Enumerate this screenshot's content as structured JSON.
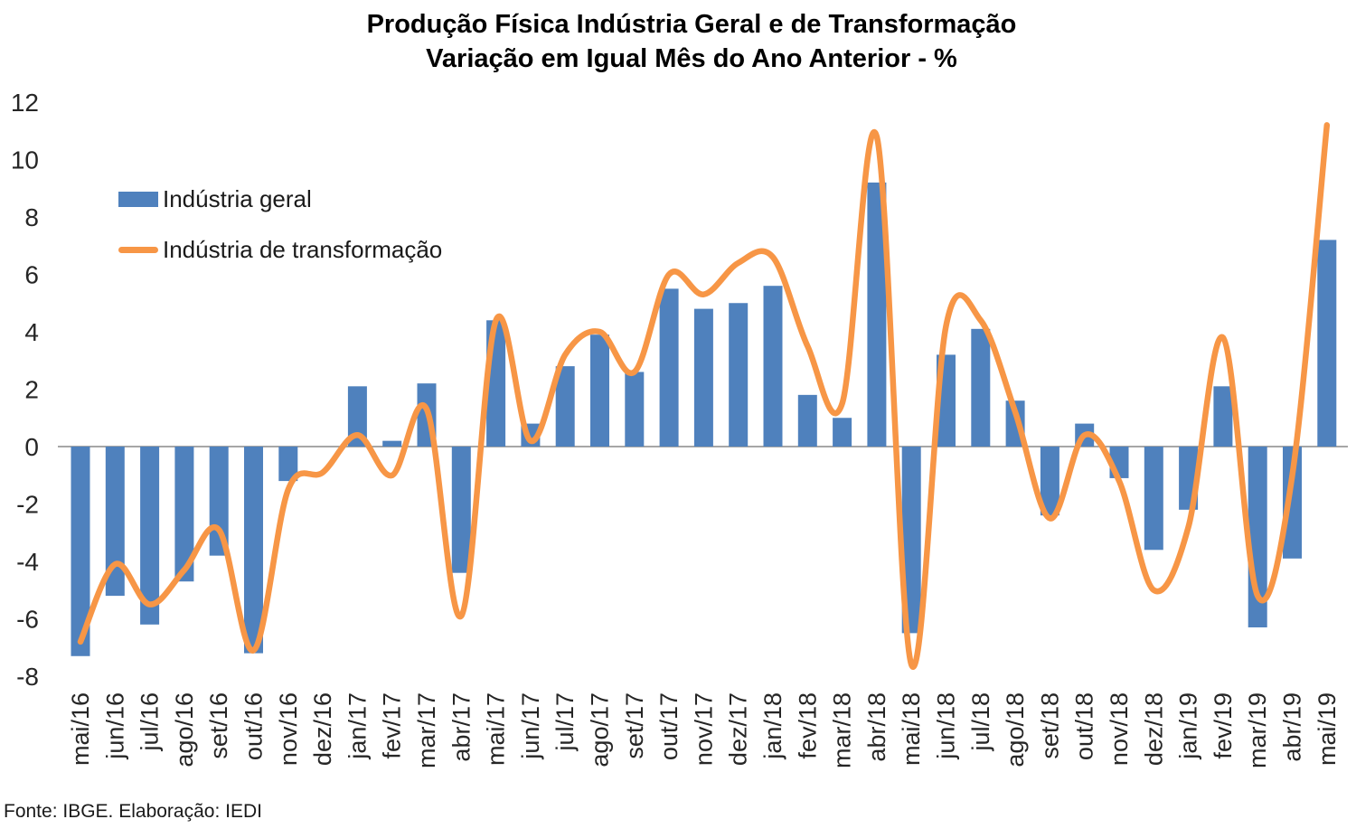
{
  "title": {
    "line1": "Produção Física Indústria Geral e de Transformação",
    "line2": "Variação em Igual Mês do Ano Anterior - %"
  },
  "legend": {
    "bar_label": "Indústria geral",
    "line_label": "Indústria de transformação"
  },
  "footer": "Fonte: IBGE. Elaboração: IEDI",
  "colors": {
    "bar": "#4F81BD",
    "line": "#F79646",
    "axis": "#A6A6A6",
    "text": "#262626"
  },
  "chart_data": {
    "type": "bar+line combo",
    "title": "Produção Física Indústria Geral e de Transformação — Variação em Igual Mês do Ano Anterior - %",
    "xlabel": "",
    "ylabel": "",
    "ylim": [
      -8,
      12
    ],
    "yticks": [
      12,
      10,
      8,
      6,
      4,
      2,
      0,
      -2,
      -4,
      -6,
      -8
    ],
    "grid": false,
    "legend_position": "inside-top-left",
    "categories": [
      "mai/16",
      "jun/16",
      "jul/16",
      "ago/16",
      "set/16",
      "out/16",
      "nov/16",
      "dez/16",
      "jan/17",
      "fev/17",
      "mar/17",
      "abr/17",
      "mai/17",
      "jun/17",
      "jul/17",
      "ago/17",
      "set/17",
      "out/17",
      "nov/17",
      "dez/17",
      "jan/18",
      "fev/18",
      "mar/18",
      "abr/18",
      "mai/18",
      "jun/18",
      "jul/18",
      "ago/18",
      "set/18",
      "out/18",
      "nov/18",
      "dez/18",
      "jan/19",
      "fev/19",
      "mar/19",
      "abr/19",
      "mai/19"
    ],
    "series": [
      {
        "name": "Indústria geral",
        "type": "bar",
        "values": [
          -7.3,
          -5.2,
          -6.2,
          -4.7,
          -3.8,
          -7.2,
          -1.2,
          0.0,
          2.1,
          0.2,
          2.2,
          -4.4,
          4.4,
          0.8,
          2.8,
          3.9,
          2.6,
          5.5,
          4.8,
          5.0,
          5.6,
          1.8,
          1.0,
          9.2,
          -6.5,
          3.2,
          4.1,
          1.6,
          -2.4,
          0.8,
          -1.1,
          -3.6,
          -2.2,
          2.1,
          -6.3,
          -3.9,
          7.2
        ]
      },
      {
        "name": "Indústria de transformação",
        "type": "line",
        "values": [
          -6.8,
          -4.1,
          -5.5,
          -4.3,
          -2.9,
          -7.1,
          -1.5,
          -0.9,
          0.4,
          -1.0,
          1.3,
          -5.9,
          4.4,
          0.2,
          3.2,
          4.0,
          2.6,
          6.0,
          5.3,
          6.4,
          6.6,
          3.5,
          1.5,
          10.8,
          -7.6,
          4.2,
          4.4,
          1.2,
          -2.5,
          0.4,
          -1.2,
          -5.0,
          -2.8,
          3.8,
          -5.2,
          -1.0,
          11.2
        ]
      }
    ]
  }
}
